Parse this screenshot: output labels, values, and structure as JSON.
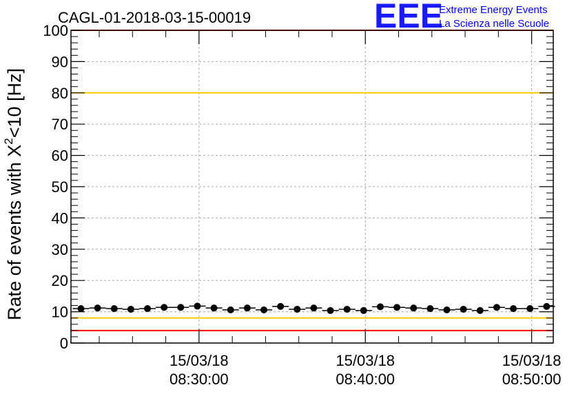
{
  "chart_data": {
    "type": "scatter",
    "title": "CAGL-01-2018-03-15-00019",
    "ylabel_prefix": "Rate of events with ",
    "ylabel_chi": "X",
    "ylabel_sup": "2",
    "ylabel_suffix": "<10 [Hz]",
    "ylim": [
      0,
      100
    ],
    "yticks": [
      "0",
      "10",
      "20",
      "30",
      "40",
      "50",
      "60",
      "70",
      "80",
      "90",
      "100"
    ],
    "xticks": [
      {
        "t": 30,
        "date": "15/03/18",
        "time": "08:30:00"
      },
      {
        "t": 40,
        "date": "15/03/18",
        "time": "08:40:00"
      },
      {
        "t": 50,
        "date": "15/03/18",
        "time": "08:50:00"
      }
    ],
    "xlim_minutes_after_0800": [
      22.3,
      51.3
    ],
    "grid": true,
    "hlines": [
      {
        "y": 4,
        "color": "#ff0000"
      },
      {
        "y": 8,
        "color": "#ffcc00"
      },
      {
        "y": 80,
        "color": "#ffcc00"
      },
      {
        "y": 100,
        "color": "#ff0000"
      }
    ],
    "points_x_minutes_after_0800": [
      22.9,
      23.9,
      24.9,
      25.9,
      26.9,
      27.9,
      28.9,
      29.9,
      30.9,
      31.9,
      32.9,
      33.9,
      34.9,
      35.9,
      36.9,
      37.9,
      38.9,
      39.9,
      40.9,
      41.9,
      42.9,
      43.9,
      44.9,
      45.9,
      46.9,
      47.9,
      48.9,
      49.9,
      50.9
    ],
    "points_y": [
      11.0,
      11.2,
      11.0,
      10.8,
      11.0,
      11.4,
      11.4,
      11.8,
      11.2,
      10.6,
      11.2,
      10.6,
      11.7,
      10.8,
      11.2,
      10.4,
      10.8,
      10.4,
      11.6,
      11.4,
      11.2,
      11.0,
      10.6,
      10.8,
      10.4,
      11.4,
      11.0,
      11.0,
      11.7
    ],
    "point_color": "#000000"
  },
  "logo": {
    "mark": "EEE",
    "line1": "Extreme Energy Events",
    "line2": "La Scienza nelle Scuole",
    "color": "#0000ee"
  }
}
